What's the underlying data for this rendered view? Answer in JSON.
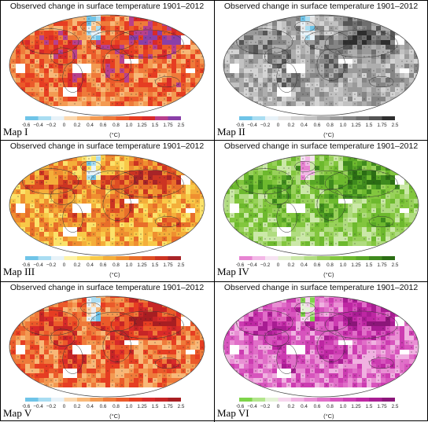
{
  "title": "Observed change in surface temperature 1901–2012",
  "unit": "(°C)",
  "ticks": [
    "−0.6",
    "−0.4",
    "−0.2",
    "0",
    "0.2",
    "0.4",
    "0.6",
    "0.8",
    "1.0",
    "1.25",
    "1.5",
    "1.75",
    "2.5"
  ],
  "panels": [
    {
      "label": "Map I",
      "palette": [
        "#6fc4e8",
        "#a9ddf2",
        "#e7f2f8",
        "#fbd9b0",
        "#f8b878",
        "#f39a52",
        "#ef7a3a",
        "#eb5a2a",
        "#e63d22",
        "#d82a2a",
        "#b8408c",
        "#8a3fa8"
      ]
    },
    {
      "label": "Map II",
      "palette": [
        "#6fc4e8",
        "#a9ddf2",
        "#e7f2f8",
        "#e6e6e6",
        "#d4d4d4",
        "#c2c2c2",
        "#aeaeae",
        "#9a9a9a",
        "#858585",
        "#6e6e6e",
        "#555555",
        "#2e2e2e"
      ]
    },
    {
      "label": "Map III",
      "palette": [
        "#6fc4e8",
        "#a9ddf2",
        "#e7f2f8",
        "#fdf3a8",
        "#fbe26a",
        "#f8c948",
        "#f4ae3a",
        "#ef8f30",
        "#e86e2a",
        "#de4e24",
        "#cc3422",
        "#a82428"
      ]
    },
    {
      "label": "Map IV",
      "palette": [
        "#e784d2",
        "#f3b8e7",
        "#f6e2f2",
        "#e3f1cf",
        "#cbe8a8",
        "#b0dc80",
        "#98d15a",
        "#82c63e",
        "#6db92e",
        "#58a726",
        "#3f8a1e",
        "#2b6d14"
      ]
    },
    {
      "label": "Map V",
      "palette": [
        "#6fc4e8",
        "#a9ddf2",
        "#e7f2f8",
        "#fbd9b0",
        "#f8b878",
        "#f39a52",
        "#ef7a3a",
        "#eb5a2a",
        "#e63d22",
        "#d82a2a",
        "#c62526",
        "#a81e22"
      ]
    },
    {
      "label": "Map VI",
      "palette": [
        "#7ed44a",
        "#b3e58d",
        "#e4f3d6",
        "#f6d6ee",
        "#f0b2e1",
        "#e98fd4",
        "#e06fc8",
        "#d754bd",
        "#cc3cb1",
        "#be27a3",
        "#a81d93",
        "#8b1679"
      ]
    }
  ]
}
